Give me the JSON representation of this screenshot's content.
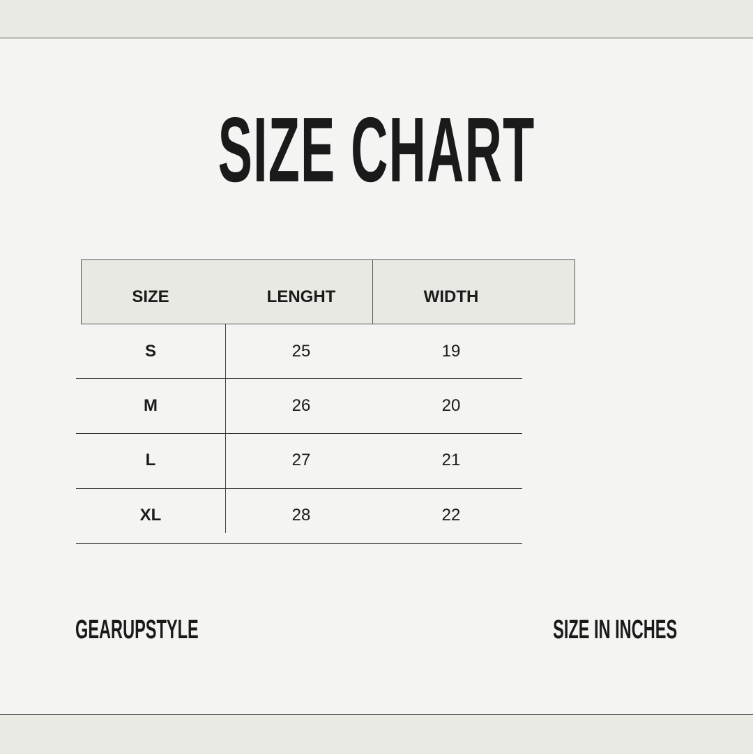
{
  "title": "SIZE CHART",
  "table": {
    "headers": [
      "SIZE",
      "LENGHT",
      "WIDTH"
    ],
    "rows": [
      {
        "size": "S",
        "length": "25",
        "width": "19"
      },
      {
        "size": "M",
        "length": "26",
        "width": "20"
      },
      {
        "size": "L",
        "length": "27",
        "width": "21"
      },
      {
        "size": "XL",
        "length": "28",
        "width": "22"
      }
    ]
  },
  "footer": {
    "brand": "GEARUPSTYLE",
    "unit_note": "SIZE IN INCHES"
  },
  "colors": {
    "background": "#f4f4f2",
    "band": "#e9eae4",
    "header": "#e9e9e4",
    "text": "#1a1a1a"
  }
}
